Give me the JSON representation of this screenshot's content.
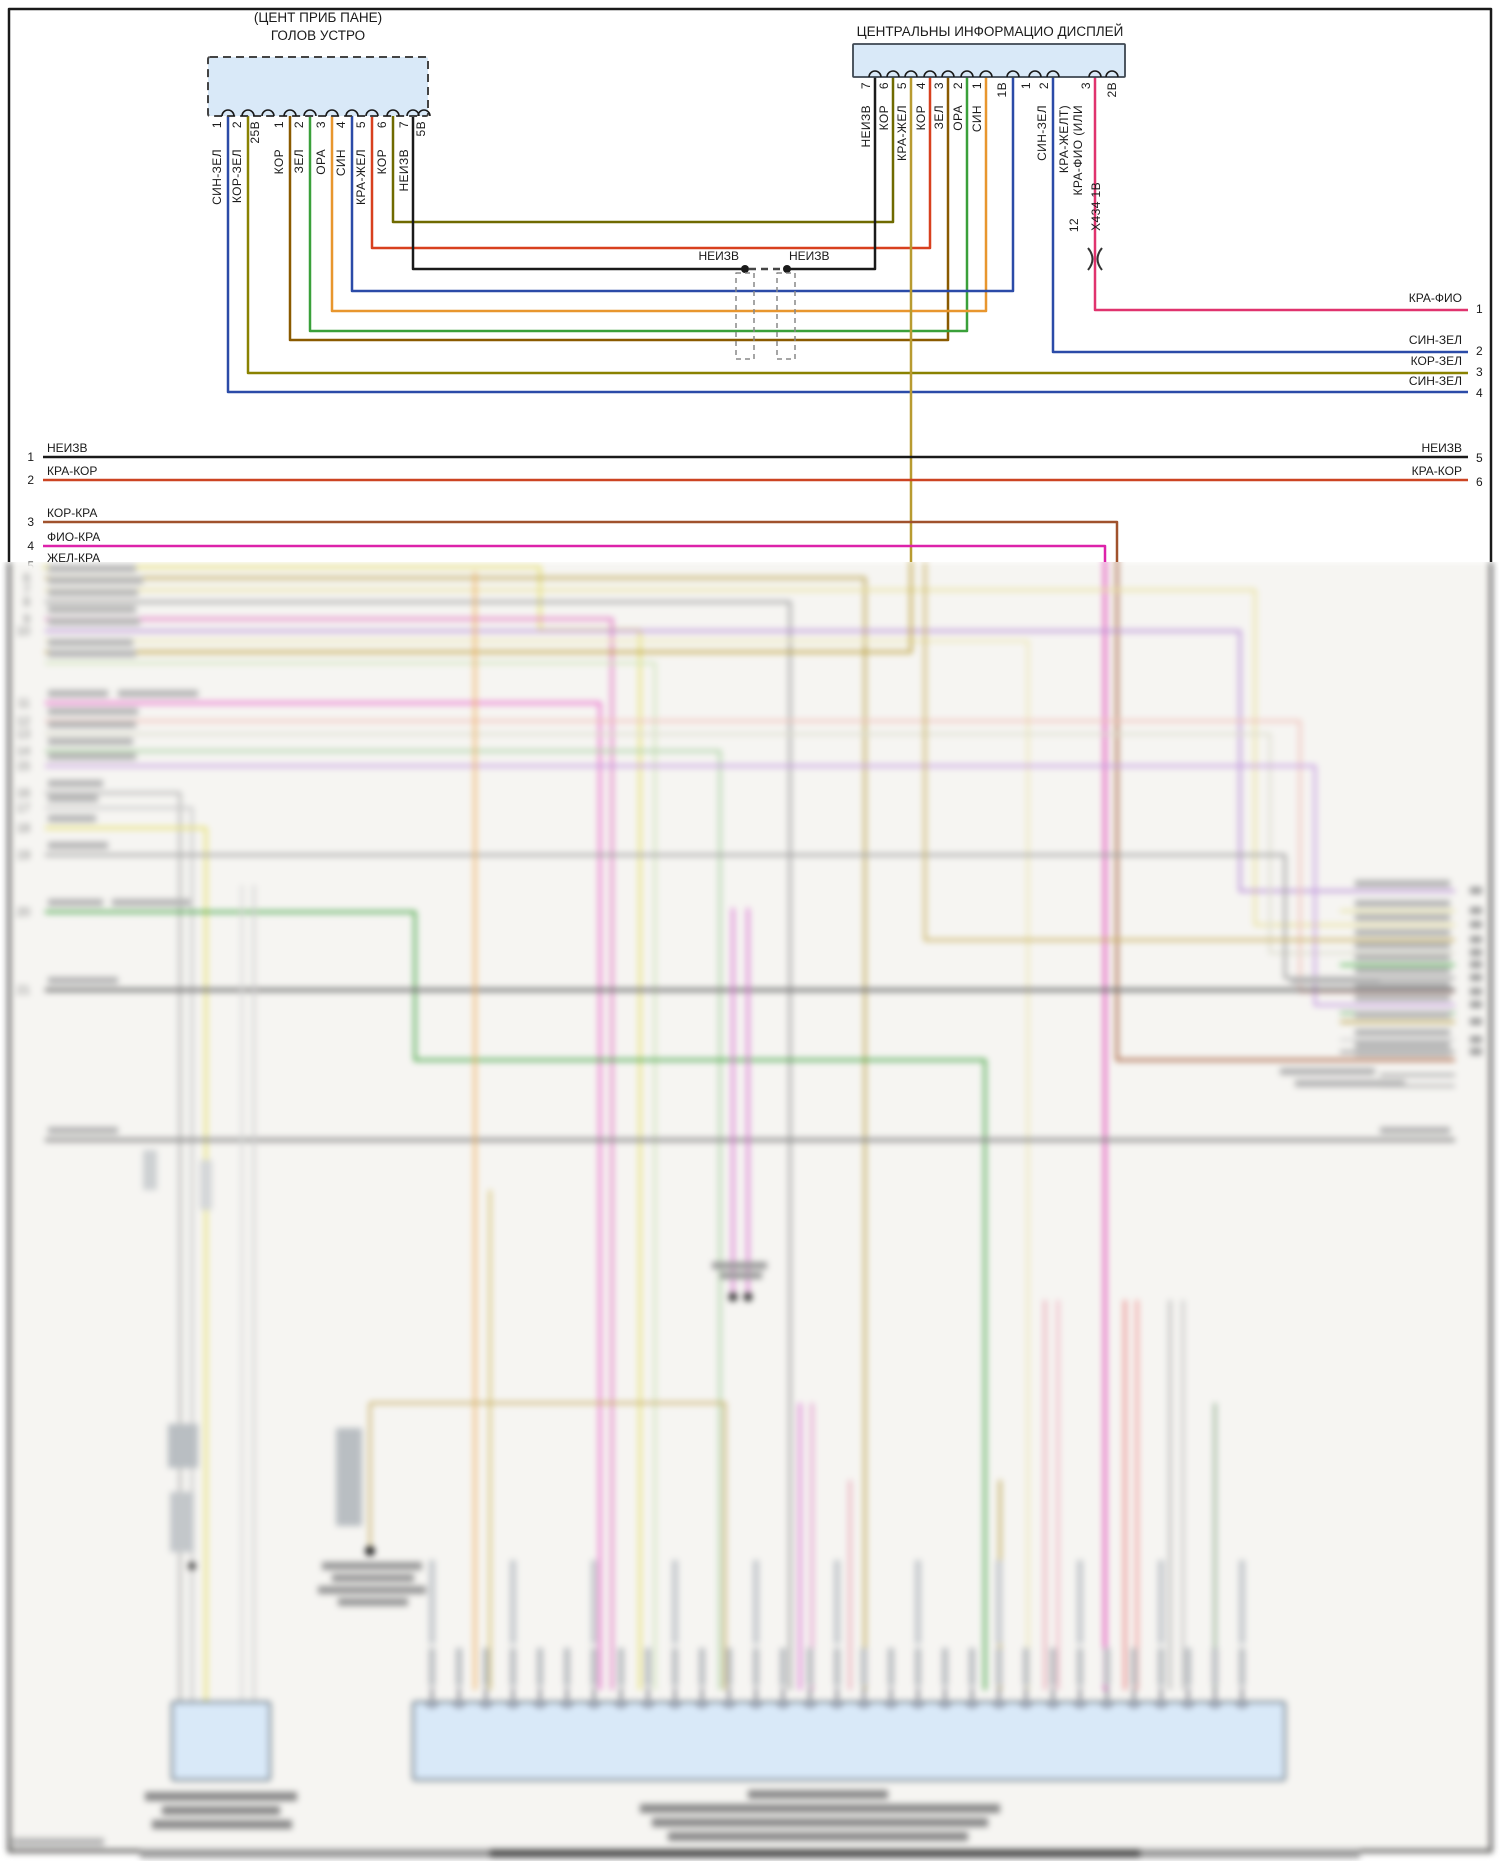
{
  "palette": {
    "black": "#1a1a1a",
    "blue": "#2b4ba8",
    "olive": "#8a8200",
    "darkolive": "#6f6a00",
    "brown": "#8a5a00",
    "darkbrown": "#6b4a00",
    "brown2": "#6b5200",
    "green": "#3aa03a",
    "orange": "#e8962e",
    "red": "#d8401e",
    "khaki": "#b89b30",
    "pink": "#e0336e",
    "magenta": "#dd22aa",
    "redorange": "#cc4422",
    "busbrown": "#a0522d",
    "yellow": "#e6df66",
    "box_fill": "#d9e9f8",
    "box_edge": "#5c6b78"
  },
  "head_unit": {
    "title_line1": "(ЦЕНТ ПРИБ ПАНЕ)",
    "title_line2": "ГОЛОВ УСТРО",
    "pins": [
      {
        "num": "1",
        "wire": "СИН-ЗЕЛ"
      },
      {
        "num": "2",
        "wire": "КОР-ЗЕЛ"
      },
      {
        "num": "25В",
        "wire": ""
      },
      {
        "num": "1",
        "wire": "КОР"
      },
      {
        "num": "2",
        "wire": "ЗЕЛ"
      },
      {
        "num": "3",
        "wire": "ОРА"
      },
      {
        "num": "4",
        "wire": "СИН"
      },
      {
        "num": "5",
        "wire": "КРА-ЖЕЛ"
      },
      {
        "num": "6",
        "wire": "КОР"
      },
      {
        "num": "7",
        "wire": "НЕИЗВ"
      },
      {
        "num": "5В",
        "wire": ""
      }
    ]
  },
  "display_unit": {
    "title": "ЦЕНТРАЛЬНЫ ИНФОРМАЦИО ДИСПЛЕЙ",
    "pins": [
      {
        "num": "7",
        "wire": "НЕИЗВ"
      },
      {
        "num": "6",
        "wire": "КОР"
      },
      {
        "num": "5",
        "wire": "КРА-ЖЕЛ"
      },
      {
        "num": "4",
        "wire": "КОР"
      },
      {
        "num": "3",
        "wire": "ЗЕЛ"
      },
      {
        "num": "2",
        "wire": "ОРА"
      },
      {
        "num": "1",
        "wire": "СИН"
      },
      {
        "num": "1В",
        "wire": ""
      },
      {
        "num": "1",
        "wire": ""
      },
      {
        "num": "2",
        "wire": "СИН-ЗЕЛ"
      },
      {
        "num": "3",
        "wire": "КРА-ЖЕЛТ)"
      },
      {
        "num": "2В",
        "wire": "КРА-ФИО (ИЛИ"
      }
    ]
  },
  "splice": {
    "left_label": "НЕИЗВ",
    "right_label": "НЕИЗВ"
  },
  "x434": {
    "pin": "12",
    "name": "Х434 1В"
  },
  "edge_rows": [
    {
      "label": "КРА-ФИО",
      "num": "1"
    },
    {
      "label": "СИН-ЗЕЛ",
      "num": "2"
    },
    {
      "label": "КОР-ЗЕЛ",
      "num": "3"
    },
    {
      "label": "СИН-ЗЕЛ",
      "num": "4"
    }
  ],
  "bus_rows": [
    {
      "left_num": "1",
      "left_label": "НЕИЗВ",
      "right_label": "НЕИЗВ",
      "right_num": "5"
    },
    {
      "left_num": "2",
      "left_label": "КРА-КОР",
      "right_label": "КРА-КОР",
      "right_num": "6"
    },
    {
      "left_num": "3",
      "left_label": "КОР-КРА",
      "right_label": "",
      "right_num": ""
    },
    {
      "left_num": "4",
      "left_label": "ФИО-КРА",
      "right_label": "",
      "right_num": ""
    },
    {
      "left_num": "5",
      "left_label": "ЖЕЛ-КРА",
      "right_label": "",
      "right_num": ""
    }
  ],
  "blur_section": {
    "left_row_numbers": [
      "6",
      "7",
      "8",
      "9",
      "10",
      "11",
      "12",
      "13",
      "14",
      "15",
      "16",
      "17",
      "18",
      "19",
      "20",
      "21"
    ]
  },
  "bottom_connector": {
    "pin_count": 31
  }
}
